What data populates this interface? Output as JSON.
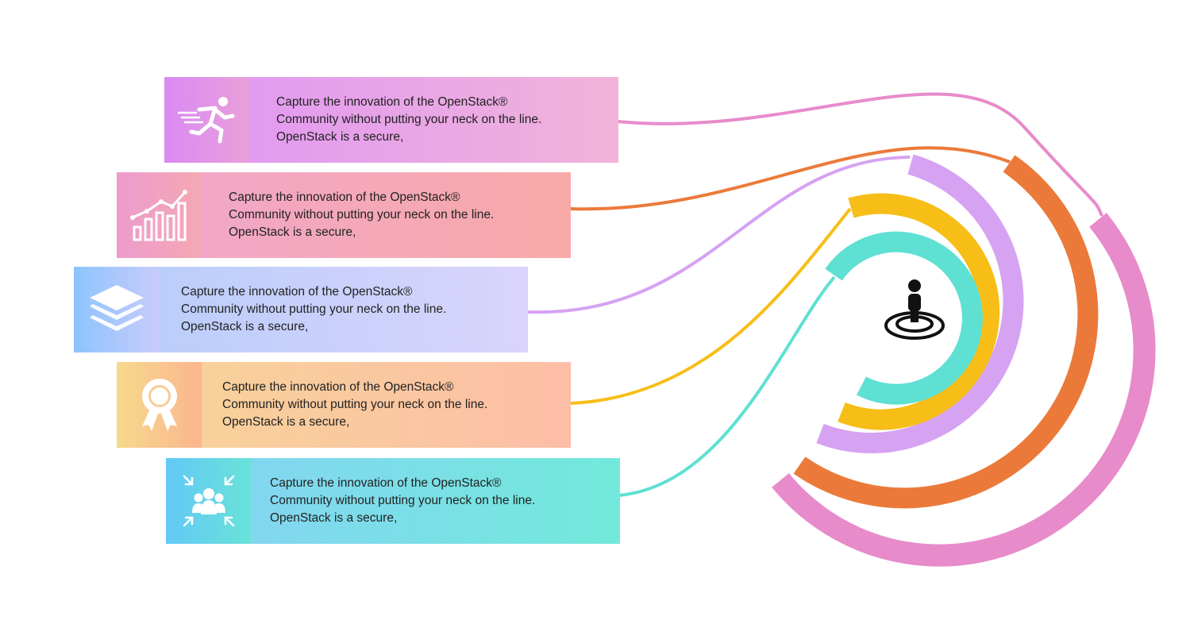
{
  "cards": [
    {
      "icon": "running-person-icon",
      "lines": [
        "Capture the innovation of the OpenStack®",
        "Community without putting your neck on the line.",
        "OpenStack is a secure,"
      ],
      "color": "#E78BCB"
    },
    {
      "icon": "growth-bar-chart-icon",
      "lines": [
        "Capture the innovation of the OpenStack®",
        "Community without putting your neck on the line.",
        "OpenStack is a secure,"
      ],
      "color": "#EB7A3A"
    },
    {
      "icon": "stacked-layers-icon",
      "lines": [
        "Capture the innovation of the OpenStack®",
        "Community without putting your neck on the line.",
        "OpenStack is a secure,"
      ],
      "color": "#D6A2F2"
    },
    {
      "icon": "award-ribbon-icon",
      "lines": [
        "Capture the innovation of the OpenStack®",
        "Community without putting your neck on the line.",
        "OpenStack is a secure,"
      ],
      "color": "#F7BE17"
    },
    {
      "icon": "team-focus-icon",
      "lines": [
        "Capture the innovation of the OpenStack®",
        "Community without putting your neck on the line.",
        "OpenStack is a secure,"
      ],
      "color": "#5EE0D3"
    }
  ],
  "center_icon": "person-on-target-icon"
}
